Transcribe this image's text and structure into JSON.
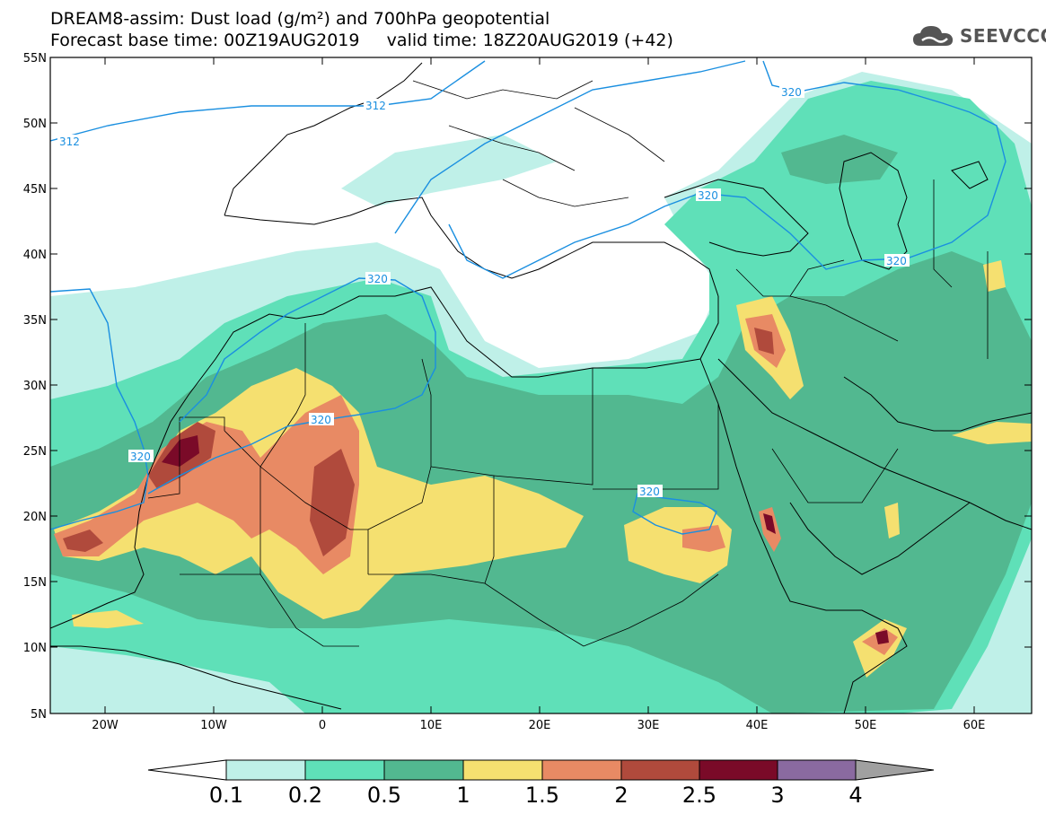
{
  "header": {
    "title_line1": "DREAM8-assim: Dust load (g/m²) and 700hPa geopotential",
    "title_line2": "Forecast base time: 00Z19AUG2019     valid time: 18Z20AUG2019 (+42)"
  },
  "logo": {
    "text": "SEEVCCC",
    "icon": "cloud-icon"
  },
  "map": {
    "lat_labels": [
      "55N",
      "50N",
      "45N",
      "40N",
      "35N",
      "30N",
      "25N",
      "20N",
      "15N",
      "10N",
      "5N"
    ],
    "lon_labels": [
      "20W",
      "10W",
      "0",
      "10E",
      "20E",
      "30E",
      "40E",
      "50E",
      "60E"
    ],
    "contour_labels": [
      "312",
      "312",
      "320",
      "320",
      "320",
      "320",
      "320",
      "320",
      "320"
    ]
  },
  "colorbar": {
    "labels": [
      "0.1",
      "0.2",
      "0.5",
      "1",
      "1.5",
      "2",
      "2.5",
      "3",
      "4"
    ],
    "colors": [
      "#ffffff",
      "#bff0e8",
      "#5fe0b8",
      "#52b890",
      "#f5e070",
      "#e88a64",
      "#b04a3c",
      "#7a0a28",
      "#8a6aa0",
      "#a0a0a0"
    ]
  }
}
